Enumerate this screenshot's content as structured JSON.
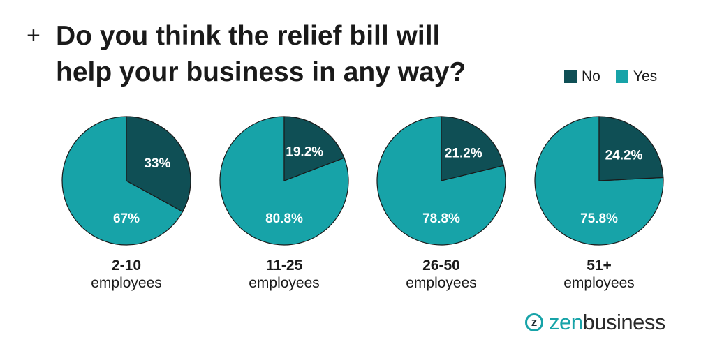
{
  "header": {
    "plus": "+",
    "title": "Do you think the relief bill will help your business in any way?"
  },
  "legend": [
    {
      "label": "No",
      "color": "#0f4f55"
    },
    {
      "label": "Yes",
      "color": "#17a3a8"
    }
  ],
  "chart_data": {
    "type": "pie",
    "title": "Do you think the relief bill will help your business in any way?",
    "series_names": [
      "No",
      "Yes"
    ],
    "colors": {
      "No": "#0f4f55",
      "Yes": "#17a3a8"
    },
    "legend_position": "top-right",
    "groups": [
      {
        "name_line1": "2-10",
        "name_line2": "employees",
        "no": 33,
        "yes": 67,
        "no_label": "33%",
        "yes_label": "67%"
      },
      {
        "name_line1": "11-25",
        "name_line2": "employees",
        "no": 19.2,
        "yes": 80.8,
        "no_label": "19.2%",
        "yes_label": "80.8%"
      },
      {
        "name_line1": "26-50",
        "name_line2": "employees",
        "no": 21.2,
        "yes": 78.8,
        "no_label": "21.2%",
        "yes_label": "78.8%"
      },
      {
        "name_line1": "51+",
        "name_line2": "employees",
        "no": 24.2,
        "yes": 75.8,
        "no_label": "24.2%",
        "yes_label": "75.8%"
      }
    ]
  },
  "logo": {
    "mark": "z",
    "part1": "zen",
    "part2": "business"
  }
}
